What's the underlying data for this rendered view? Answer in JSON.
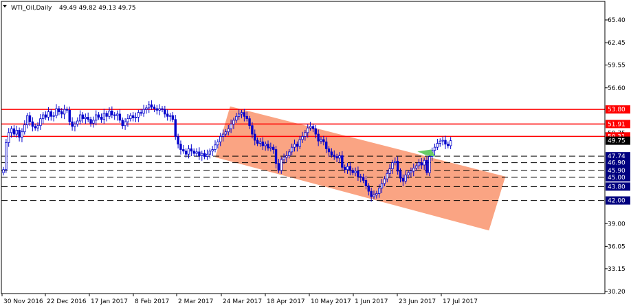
{
  "header": {
    "symbol": "WTI_Oil,Daily",
    "ohlc": "49.49 49.82 49.13 49.75"
  },
  "colors": {
    "background": "#ffffff",
    "candle": "#0000cc",
    "resistance": "#ff0000",
    "support": "#000080",
    "channel": "#fa9a76",
    "price_tag": "#000000",
    "green_zone": "#66cc66"
  },
  "chart_data": {
    "type": "candlestick",
    "ylim": [
      30.2,
      67.0
    ],
    "y_ticks": [
      "65.40",
      "62.45",
      "59.55",
      "56.60",
      "50.75",
      "39.00",
      "36.05",
      "33.15",
      "30.20"
    ],
    "x_tick_labels": [
      "30 Nov 2016",
      "22 Dec 2016",
      "17 Jan 2017",
      "8 Feb 2017",
      "2 Mar 2017",
      "24 Mar 2017",
      "18 Apr 2017",
      "10 May 2017",
      "1 Jun 2017",
      "23 Jun 2017",
      "17 Jul 2017"
    ],
    "current_price": {
      "value": 49.75,
      "label": "49.75"
    },
    "resistance_levels": [
      {
        "value": 53.8,
        "label": "53.80"
      },
      {
        "value": 51.91,
        "label": "51.91"
      },
      {
        "value": 50.31,
        "label": "50.31"
      }
    ],
    "support_levels": [
      {
        "value": 47.74,
        "label": "47.74"
      },
      {
        "value": 46.9,
        "label": "46.90"
      },
      {
        "value": 45.9,
        "label": "45.90"
      },
      {
        "value": 45.0,
        "label": "45.00"
      },
      {
        "value": 43.8,
        "label": "43.80"
      },
      {
        "value": 42.0,
        "label": "42.00"
      }
    ],
    "channel": {
      "upper": [
        {
          "date": "2017-03-29",
          "price": 54.2
        },
        {
          "date": "2017-08-21",
          "price": 45.1
        }
      ],
      "lower": [
        {
          "date": "2017-03-21",
          "price": 47.6
        },
        {
          "date": "2017-08-12",
          "price": 38.1
        }
      ]
    },
    "closes": [
      46.0,
      49.5,
      50.8,
      51.3,
      50.6,
      51.1,
      50.2,
      50.9,
      51.8,
      53.0,
      52.2,
      51.6,
      51.4,
      51.7,
      52.6,
      53.1,
      52.8,
      53.5,
      52.9,
      53.0,
      53.9,
      53.5,
      53.2,
      53.8,
      53.7,
      52.2,
      51.6,
      51.9,
      52.3,
      53.1,
      52.6,
      52.8,
      52.5,
      52.0,
      52.4,
      53.1,
      52.8,
      52.5,
      53.3,
      52.9,
      53.6,
      53.1,
      53.0,
      53.2,
      52.4,
      51.7,
      52.2,
      52.6,
      53.0,
      52.7,
      52.8,
      53.4,
      53.3,
      53.8,
      54.0,
      54.4,
      54.1,
      53.9,
      53.7,
      53.9,
      53.8,
      53.2,
      52.9,
      53.0,
      52.5,
      50.3,
      49.3,
      48.6,
      48.4,
      48.0,
      48.7,
      48.4,
      48.1,
      48.3,
      47.8,
      48.1,
      47.7,
      48.0,
      48.4,
      48.6,
      49.2,
      49.6,
      50.3,
      50.6,
      50.9,
      51.3,
      51.9,
      52.4,
      52.9,
      53.2,
      53.4,
      52.9,
      52.6,
      51.7,
      50.6,
      49.8,
      49.4,
      49.6,
      49.1,
      49.3,
      48.8,
      48.9,
      48.6,
      46.8,
      45.9,
      47.3,
      47.6,
      47.8,
      48.3,
      48.9,
      49.3,
      49.0,
      49.9,
      50.3,
      50.8,
      51.4,
      51.6,
      51.3,
      50.6,
      49.7,
      49.9,
      49.6,
      48.7,
      48.3,
      47.9,
      47.7,
      47.5,
      47.8,
      46.3,
      46.0,
      46.4,
      45.9,
      45.6,
      45.8,
      45.1,
      45.0,
      44.6,
      43.9,
      43.2,
      42.5,
      42.7,
      42.9,
      43.6,
      44.2,
      44.8,
      45.5,
      46.1,
      46.9,
      47.1,
      45.8,
      44.9,
      44.5,
      45.3,
      45.6,
      45.8,
      46.2,
      46.5,
      46.9,
      46.6,
      47.2,
      45.6,
      47.7,
      48.5,
      48.9,
      49.4,
      49.7,
      49.8,
      49.3,
      49.1,
      49.75
    ]
  }
}
